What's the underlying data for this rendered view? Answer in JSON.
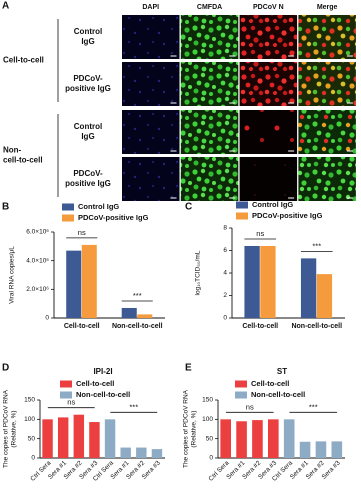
{
  "panel_a": {
    "label": "A",
    "columns": [
      "DAPI",
      "CMFDA",
      "PDCoV N",
      "Merge"
    ],
    "groups": [
      [
        "Cell-to-cell"
      ],
      [
        "Non-",
        "cell-to-cell"
      ]
    ],
    "rows": [
      [
        "Control",
        "IgG"
      ],
      [
        "PDCoV-",
        "positive IgG"
      ],
      [
        "Control",
        "IgG"
      ],
      [
        "PDCoV-",
        "positive IgG"
      ]
    ]
  },
  "chart_data": [
    {
      "type": "bar",
      "panel": "B",
      "ylabel": [
        "Viral RNA copies/μL"
      ],
      "categories": [
        "Cell-to-cell",
        "Non-cell-to-cell"
      ],
      "series": [
        {
          "name": "Control IgG",
          "color": "#3d5a94",
          "values": [
            4700000,
            700000
          ]
        },
        {
          "name": "PDCoV-positive IgG",
          "color": "#f59b3d",
          "values": [
            5100000,
            250000
          ]
        }
      ],
      "ylim": [
        0,
        6000000
      ],
      "yticks": [
        0,
        {
          "value": 2000000,
          "label": "2.0×10⁶"
        },
        {
          "value": 4000000,
          "label": "4.0×10⁶"
        },
        {
          "value": 6000000,
          "label": "6.0×10⁶"
        }
      ],
      "annotations": [
        "ns",
        "***"
      ]
    },
    {
      "type": "bar",
      "panel": "C",
      "ylabel": [
        "log₁₀TCID₅₀/mL"
      ],
      "categories": [
        "Cell-to-cell",
        "Non-cell-to-cell"
      ],
      "series": [
        {
          "name": "Control IgG",
          "color": "#3d5a94",
          "values": [
            6.4,
            5.3
          ]
        },
        {
          "name": "PDCoV-positive IgG",
          "color": "#f59b3d",
          "values": [
            6.4,
            3.9
          ]
        }
      ],
      "ylim": [
        0,
        8
      ],
      "yticks": [
        0,
        2,
        4,
        6,
        8
      ],
      "annotations": [
        "ns",
        "***"
      ]
    },
    {
      "type": "bar",
      "panel": "D",
      "title": "IPI-2I",
      "ylabel": [
        "The copies of PDCoV RNA",
        "(Relative, %)"
      ],
      "categories": [
        "Ctrl Sera",
        "Sera #1",
        "Sera #2",
        "Sera #3",
        "Ctrl Sera",
        "Sera #1",
        "Sera #2",
        "Sera #3"
      ],
      "series": [
        {
          "name": "Cell-to-cell",
          "color": "#ec4040",
          "values": [
            100,
            105,
            112,
            93,
            null,
            null,
            null,
            null
          ]
        },
        {
          "name": "Non-cell-to-cell",
          "color": "#8eabc6",
          "values": [
            null,
            null,
            null,
            null,
            100,
            27,
            27,
            23
          ]
        }
      ],
      "ylim": [
        0,
        150
      ],
      "yticks": [
        0,
        50,
        100,
        150
      ],
      "annotations": [
        "ns",
        "***"
      ]
    },
    {
      "type": "bar",
      "panel": "E",
      "title": "ST",
      "ylabel": [
        "The copies of PDCoV RNA",
        "(Relative, %)"
      ],
      "categories": [
        "Ctrl Sera",
        "Sera #1",
        "Sera #2",
        "Sera #3",
        "Ctrl Sera",
        "Sera #1",
        "Sera #2",
        "Sera #3"
      ],
      "series": [
        {
          "name": "Cell-to-cell",
          "color": "#ec4040",
          "values": [
            100,
            95,
            98,
            100,
            null,
            null,
            null,
            null
          ]
        },
        {
          "name": "Non-cell-to-cell",
          "color": "#8eabc6",
          "values": [
            null,
            null,
            null,
            null,
            100,
            42,
            43,
            43
          ]
        }
      ],
      "ylim": [
        0,
        150
      ],
      "yticks": [
        0,
        50,
        100,
        150
      ],
      "annotations": [
        "ns",
        "***"
      ]
    }
  ]
}
